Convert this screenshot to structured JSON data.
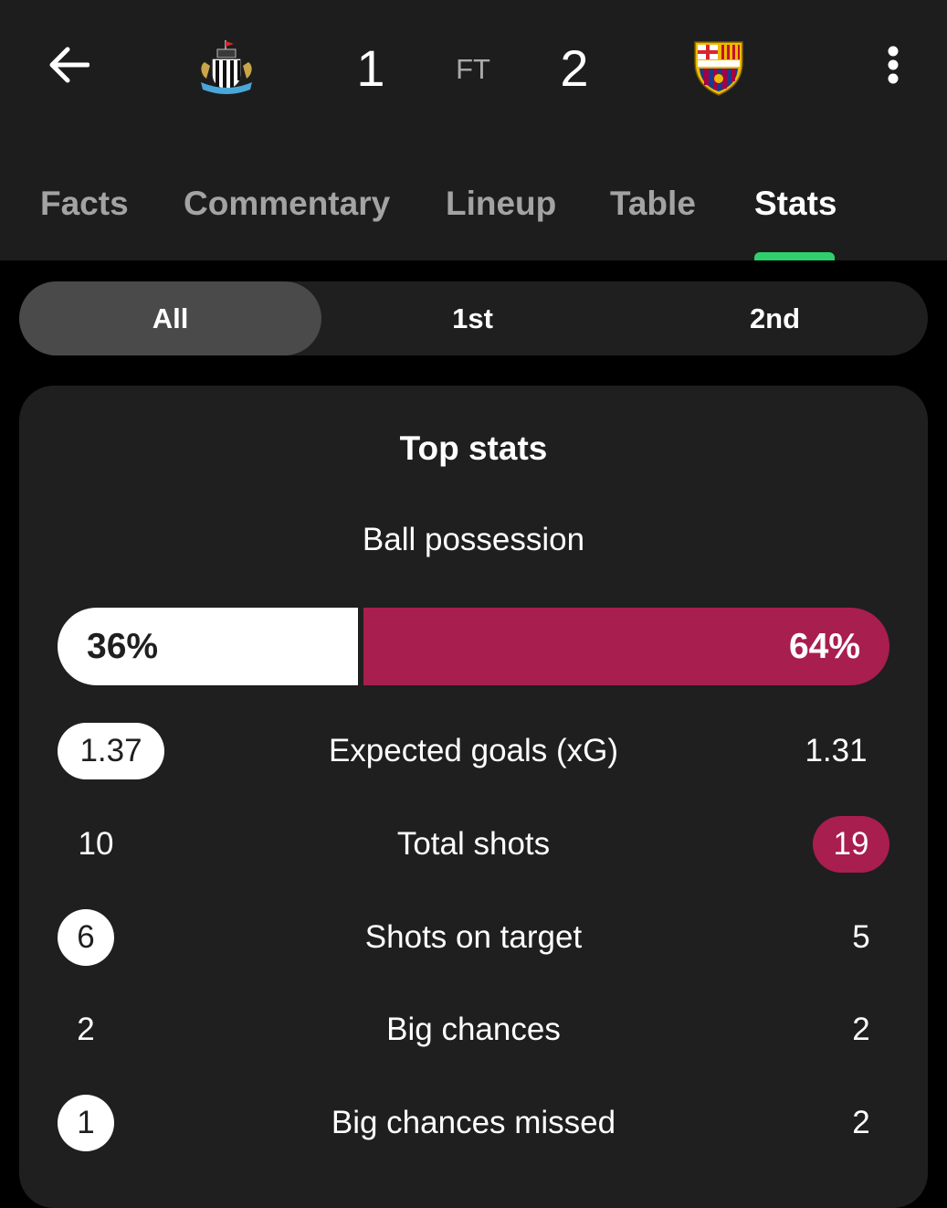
{
  "match": {
    "home_crest": "newcastle-crest-icon",
    "away_crest": "barcelona-crest-icon",
    "home_score": "1",
    "away_score": "2",
    "status": "FT"
  },
  "header_icons": {
    "back": "arrow-left-icon",
    "menu": "more-vertical-icon"
  },
  "tabs": [
    {
      "label": "Facts"
    },
    {
      "label": "Commentary"
    },
    {
      "label": "Lineup"
    },
    {
      "label": "Table"
    },
    {
      "label": "Stats",
      "active": true
    }
  ],
  "periods": [
    {
      "label": "All",
      "selected": true
    },
    {
      "label": "1st"
    },
    {
      "label": "2nd"
    }
  ],
  "top_stats": {
    "title": "Top stats",
    "possession": {
      "label": "Ball possession",
      "home_text": "36%",
      "away_text": "64%",
      "home_fraction": 0.36
    },
    "rows": [
      {
        "label": "Expected goals (xG)",
        "home": "1.37",
        "away": "1.31",
        "leader": "home"
      },
      {
        "label": "Total shots",
        "home": "10",
        "away": "19",
        "leader": "away"
      },
      {
        "label": "Shots on target",
        "home": "6",
        "away": "5",
        "leader": "home"
      },
      {
        "label": "Big chances",
        "home": "2",
        "away": "2",
        "leader": "none"
      },
      {
        "label": "Big chances missed",
        "home": "1",
        "away": "2",
        "leader": "home"
      }
    ]
  },
  "colors": {
    "header_bg": "#1d1d1d",
    "card_bg": "#1f1f1f",
    "away_accent": "#a81e4e",
    "tab_indicator": "#2fcf6c"
  }
}
